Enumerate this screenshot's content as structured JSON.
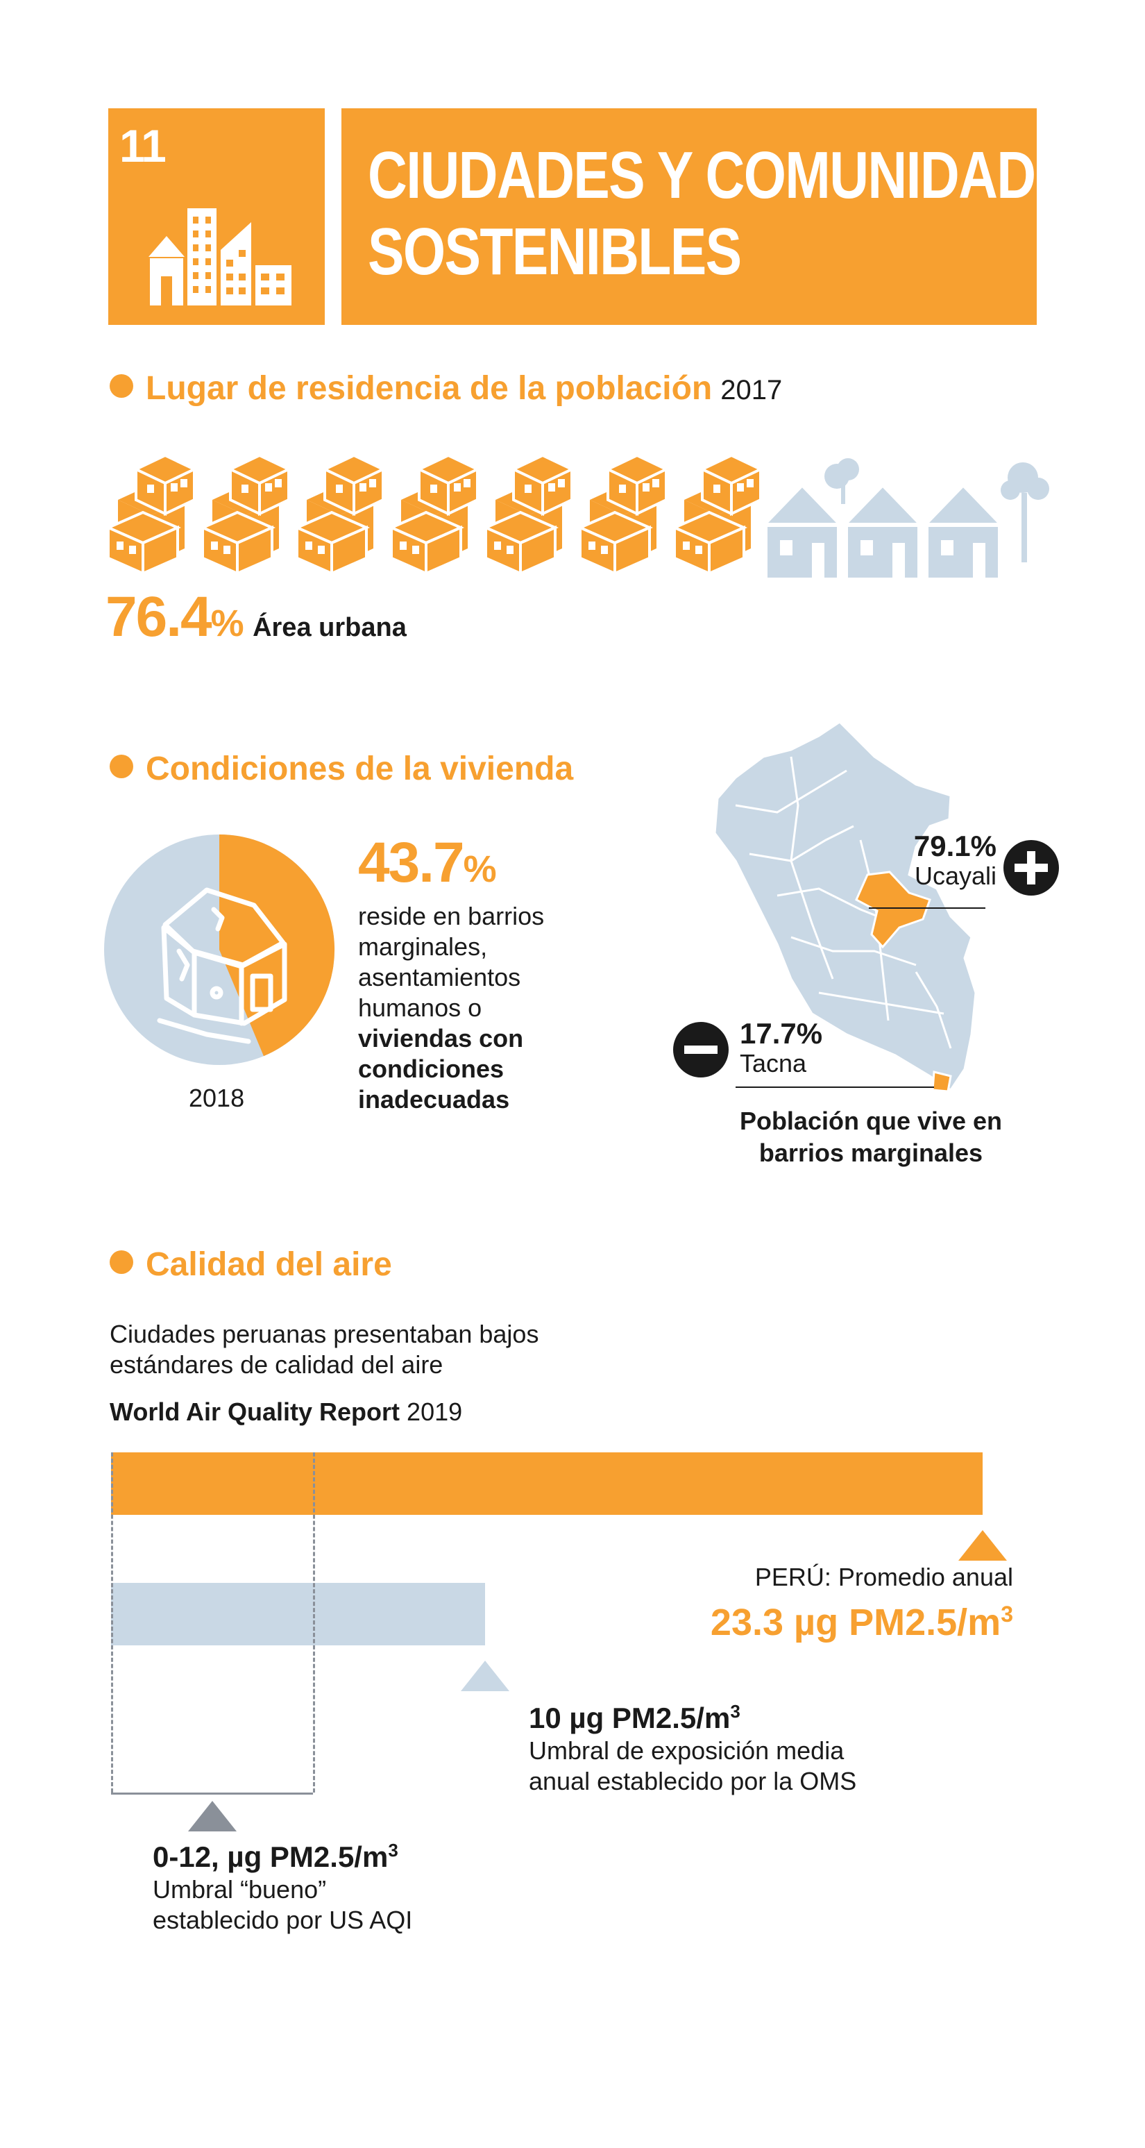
{
  "sdg": {
    "number": "11",
    "title_line1": "CIUDADES Y COMUNIDADES",
    "title_line2": "SOSTENIBLES",
    "icon": "city-buildings-icon"
  },
  "residence": {
    "title": "Lugar de residencia de la población",
    "year": "2017",
    "urban_pct_value": "76.4",
    "urban_pct_sign": "%",
    "urban_label": "Área urbana",
    "urban_icons": 7,
    "rural_icons": 3,
    "urban_share": 0.764
  },
  "housing": {
    "title": "Condiciones de la vivienda",
    "pct_value": "43.7",
    "pct_sign": "%",
    "share": 0.437,
    "line1": "reside en barrios",
    "line2": "marginales,",
    "line3": "asentamientos",
    "line4": "humanos o",
    "bold1": "viviendas con",
    "bold2": "condiciones",
    "bold3": "inadecuadas",
    "year": "2018",
    "map": {
      "max_value": "79.1%",
      "max_region": "Ucayali",
      "min_value": "17.7%",
      "min_region": "Tacna",
      "caption_line1": "Población que vive en",
      "caption_line2": "barrios marginales"
    }
  },
  "air": {
    "title": "Calidad del aire",
    "intro_line1": "Ciudades peruanas presentaban bajos",
    "intro_line2": "estándares de calidad del aire",
    "source_bold": "World Air Quality Report",
    "source_year": "2019",
    "peru_label": "PERÚ: Promedio anual",
    "peru_value": "23.3 µg PM2.5/m",
    "peru_sup": "3",
    "peru_number": 23.3,
    "oms_value": "10 µg PM2.5/m",
    "oms_sup": "3",
    "oms_number": 10,
    "oms_line1": "Umbral de exposición media",
    "oms_line2": "anual establecido por la OMS",
    "aqi_value": "0-12, µg PM2.5/m",
    "aqi_sup": "3",
    "aqi_number": 12,
    "aqi_line1": "Umbral “bueno”",
    "aqi_line2": "establecido por US AQI"
  },
  "colors": {
    "orange": "#f7a030",
    "light_blue": "#c9d8e5",
    "dark": "#1a1a1a",
    "gray": "#8a9099"
  }
}
